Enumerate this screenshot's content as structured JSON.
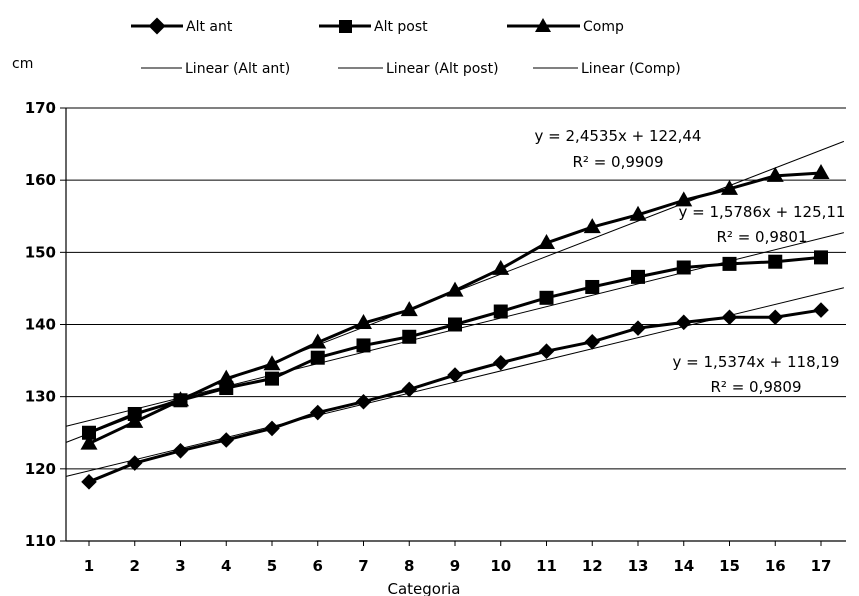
{
  "chart_data": {
    "type": "line",
    "xlabel": "Categoria",
    "ylabel": "cm",
    "ylim": [
      110,
      170
    ],
    "yticks": [
      110,
      120,
      130,
      140,
      150,
      160,
      170
    ],
    "categories": [
      "1",
      "2",
      "3",
      "4",
      "5",
      "6",
      "7",
      "8",
      "9",
      "10",
      "11",
      "12",
      "13",
      "14",
      "15",
      "16",
      "17"
    ],
    "grid": "horizontal",
    "legend_position": "top",
    "series": [
      {
        "name": "Alt ant",
        "marker": "diamond",
        "values": [
          118.2,
          120.8,
          122.5,
          124.0,
          125.6,
          127.8,
          129.3,
          131.0,
          133.0,
          134.7,
          136.3,
          137.6,
          139.5,
          140.3,
          141.0,
          141.0,
          142.0
        ]
      },
      {
        "name": "Alt post",
        "marker": "square",
        "values": [
          125.0,
          127.6,
          129.5,
          131.2,
          132.5,
          135.4,
          137.1,
          138.3,
          140.0,
          141.8,
          143.7,
          145.2,
          146.6,
          147.9,
          148.4,
          148.7,
          149.3
        ]
      },
      {
        "name": "Comp",
        "marker": "triangle",
        "values": [
          123.5,
          126.5,
          129.5,
          132.5,
          134.5,
          137.5,
          140.2,
          142.0,
          144.7,
          147.7,
          151.3,
          153.5,
          155.2,
          157.2,
          158.8,
          160.6,
          161.0
        ]
      }
    ],
    "trendlines": [
      {
        "name": "Linear (Alt ant)",
        "slope": 1.5374,
        "intercept": 118.19,
        "equation": "y = 1,5374x + 118,19",
        "r2": "R² = 0,9809"
      },
      {
        "name": "Linear (Alt post)",
        "slope": 1.5786,
        "intercept": 125.11,
        "equation": "y = 1,5786x + 125,11",
        "r2": "R² = 0,9801"
      },
      {
        "name": "Linear (Comp)",
        "slope": 2.4535,
        "intercept": 122.44,
        "equation": "y = 2,4535x + 122,44",
        "r2": "R² = 0,9909"
      }
    ]
  }
}
